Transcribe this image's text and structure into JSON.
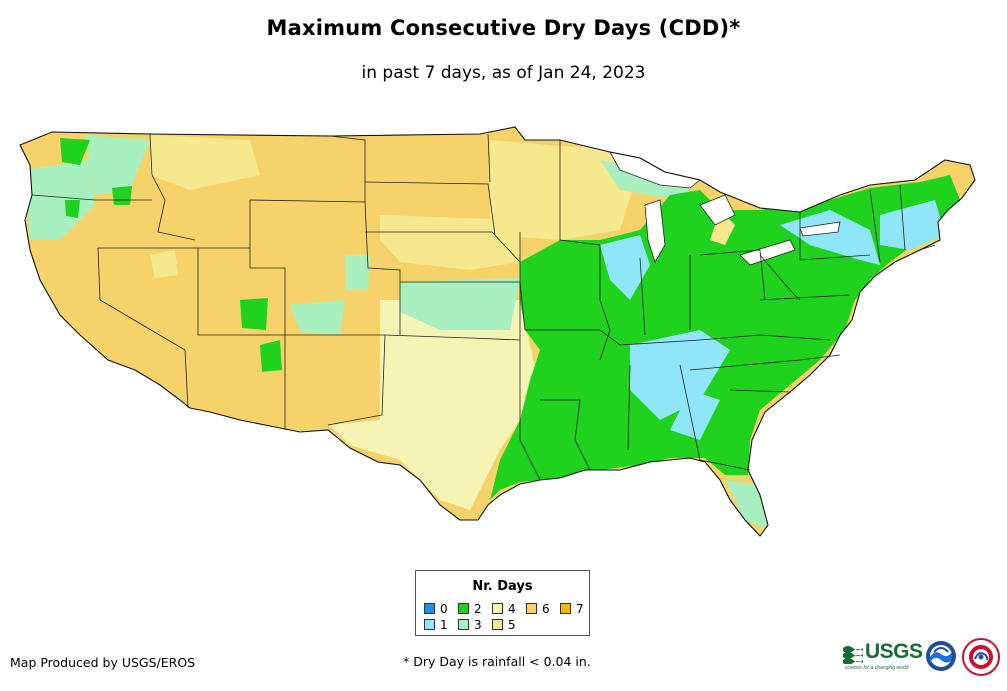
{
  "title": "Maximum Consecutive Dry Days (CDD)*",
  "subtitle": "in past 7 days, as of Jan 24, 2023",
  "legend": {
    "title": "Nr. Days",
    "items": [
      {
        "label": "0",
        "color": "#1e90e6"
      },
      {
        "label": "1",
        "color": "#8fe6f8"
      },
      {
        "label": "2",
        "color": "#1ed21e"
      },
      {
        "label": "3",
        "color": "#a8f0c0"
      },
      {
        "label": "4",
        "color": "#f6f4b4"
      },
      {
        "label": "5",
        "color": "#f6e88c"
      },
      {
        "label": "6",
        "color": "#f6d36a"
      },
      {
        "label": "7",
        "color": "#f5b800"
      }
    ]
  },
  "footer": {
    "credit": "Map Produced by USGS/EROS",
    "footnote": "* Dry Day is rainfall < 0.04 in."
  },
  "logos": {
    "usgs_text": "USGS",
    "usgs_tagline": "science for a changing world"
  }
}
